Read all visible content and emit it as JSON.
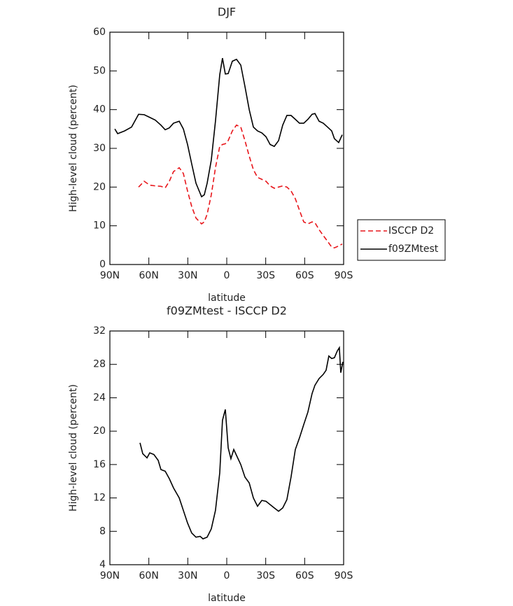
{
  "chart_data": [
    {
      "type": "line",
      "title": "DJF",
      "xlabel": "latitude",
      "ylabel": "High-level cloud (percent)",
      "x": [
        86.2,
        84,
        78.7,
        73.3,
        67.9,
        63.6,
        59.3,
        55,
        50.7,
        47.4,
        44.2,
        41,
        36.6,
        33.4,
        30.2,
        27,
        23.7,
        19.4,
        17.3,
        15.1,
        11.9,
        8.7,
        5.4,
        3.3,
        1.1,
        -1.1,
        -4.3,
        -7.5,
        -10.8,
        -14,
        -17.3,
        -20.5,
        -23.7,
        -27,
        -30.2,
        -33.4,
        -36.6,
        -39.9,
        -43.1,
        -46.3,
        -49.5,
        -52.8,
        -56,
        -59.3,
        -62.5,
        -65.7,
        -67.9,
        -71.1,
        -74.3,
        -77.6,
        -80.8,
        -82.9,
        -86.2,
        -88.9
      ],
      "series": [
        {
          "name": "ISCCP D2",
          "color": "#e8161b",
          "linestyle": "dashed",
          "values": [
            null,
            null,
            null,
            null,
            20,
            21.5,
            20.5,
            20.3,
            20.2,
            19.8,
            21.5,
            24,
            25,
            23.5,
            19,
            15,
            12,
            10.5,
            11,
            13,
            18,
            25,
            30.5,
            31,
            31.2,
            32,
            34.5,
            36,
            35.5,
            32,
            28,
            24.5,
            22.5,
            22,
            21.5,
            20.3,
            19.7,
            20,
            20.3,
            20,
            19,
            17,
            14,
            11,
            10.5,
            11,
            10.8,
            9,
            7.5,
            6,
            4.5,
            4.3,
            4.8,
            5.3
          ]
        },
        {
          "name": "f09ZMtest",
          "color": "#000000",
          "linestyle": "solid",
          "values": [
            35,
            33.8,
            34.5,
            35.5,
            38.8,
            38.7,
            38,
            37.3,
            36,
            34.8,
            35.3,
            36.5,
            37,
            35,
            31,
            26,
            21,
            17.5,
            18,
            21,
            27,
            37,
            49,
            53.3,
            49.2,
            49.3,
            52.5,
            53,
            51.5,
            46,
            40,
            35.5,
            34.5,
            34,
            33,
            31,
            30.5,
            32,
            36,
            38.5,
            38.5,
            37.5,
            36.5,
            36.5,
            37.5,
            38.8,
            39,
            37,
            36.5,
            35.5,
            34.5,
            32.5,
            31.5,
            33.5
          ]
        }
      ],
      "xlim": [
        90,
        -90
      ],
      "ylim": [
        0,
        60
      ],
      "xticks": [
        {
          "value": 90,
          "label": "90N"
        },
        {
          "value": 60,
          "label": "60N"
        },
        {
          "value": 30,
          "label": "30N"
        },
        0,
        {
          "value": -30,
          "label": "30S"
        },
        {
          "value": -60,
          "label": "60S"
        },
        {
          "value": -90,
          "label": "90S"
        }
      ],
      "yticks": [
        0,
        10,
        20,
        30,
        40,
        50,
        60
      ],
      "legend": "right"
    },
    {
      "type": "line",
      "title": "f09ZMtest - ISCCP D2",
      "xlabel": "latitude",
      "ylabel": "High-level cloud (percent)",
      "x": [
        66.8,
        64.7,
        61.4,
        59.3,
        56.1,
        52.8,
        50.7,
        47.4,
        44.2,
        41,
        36.6,
        33.4,
        30.2,
        27,
        23.7,
        20.5,
        18.3,
        15.1,
        11.9,
        8.7,
        5.4,
        3.3,
        1.1,
        -1.1,
        -3.2,
        -5.4,
        -7.5,
        -10.8,
        -14,
        -17.3,
        -20.5,
        -23.7,
        -27,
        -30.2,
        -33.4,
        -36.6,
        -39.9,
        -43.1,
        -46.3,
        -49.5,
        -52.8,
        -56,
        -59.3,
        -62.5,
        -65.7,
        -67.9,
        -71.1,
        -74.3,
        -76.5,
        -78.6,
        -80.8,
        -82.9,
        -85.1,
        -86.7,
        -87.8,
        -89.4
      ],
      "series": [
        {
          "color": "#000000",
          "linestyle": "solid",
          "values": [
            18.6,
            17.3,
            16.8,
            17.4,
            17.2,
            16.5,
            15.4,
            15.2,
            14.3,
            13.2,
            12,
            10.5,
            9,
            7.8,
            7.3,
            7.4,
            7.1,
            7.3,
            8.3,
            10.5,
            15,
            21.3,
            22.6,
            18,
            16.7,
            17.8,
            17.1,
            16,
            14.5,
            13.8,
            12,
            11,
            11.7,
            11.6,
            11.2,
            10.8,
            10.4,
            10.8,
            11.8,
            14.5,
            17.8,
            19.2,
            20.8,
            22.3,
            24.5,
            25.5,
            26.3,
            26.8,
            27.3,
            29,
            28.7,
            28.8,
            29.6,
            30,
            27,
            28.3
          ]
        }
      ],
      "xlim": [
        90,
        -90
      ],
      "ylim": [
        4,
        32
      ],
      "xticks": [
        {
          "value": 90,
          "label": "90N"
        },
        {
          "value": 60,
          "label": "60N"
        },
        {
          "value": 30,
          "label": "30N"
        },
        0,
        {
          "value": -30,
          "label": "30S"
        },
        {
          "value": -60,
          "label": "60S"
        },
        {
          "value": -90,
          "label": "90S"
        }
      ],
      "yticks": [
        4,
        8,
        12,
        16,
        20,
        24,
        28,
        32
      ]
    }
  ]
}
